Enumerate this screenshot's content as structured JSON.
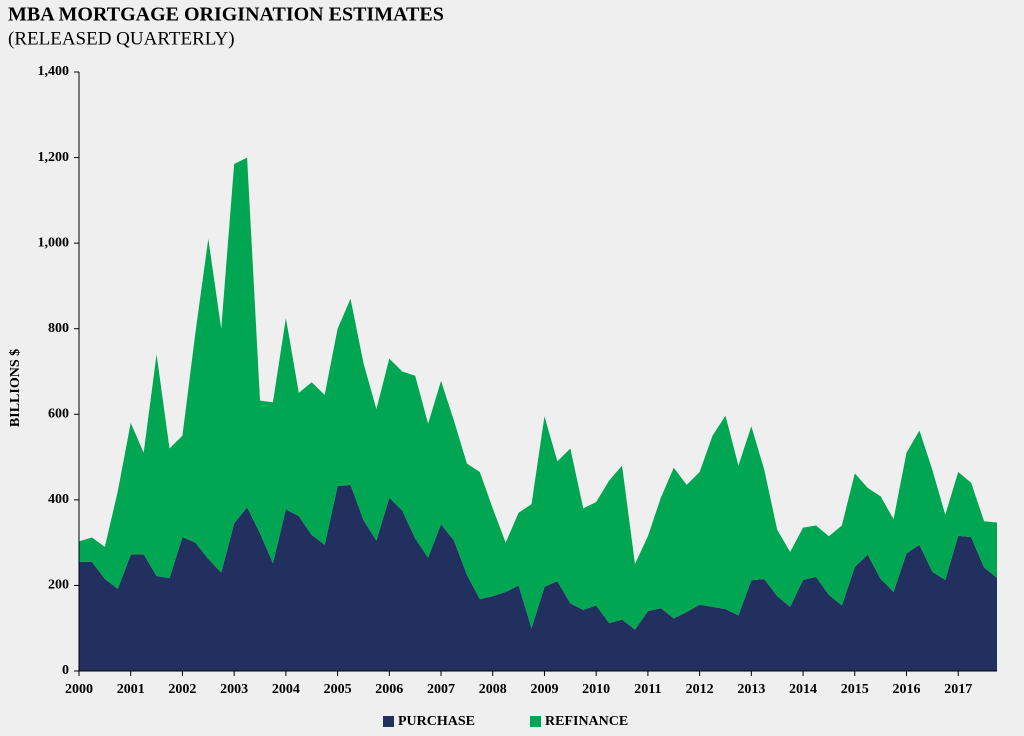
{
  "chart_data": {
    "type": "stacked-area",
    "title": "MBA MORTGAGE ORIGINATION ESTIMATES",
    "subtitle": "(RELEASED QUARTERLY)",
    "y_label": "BILLIONS $",
    "categories": [
      "2000",
      null,
      null,
      null,
      "2001",
      null,
      null,
      null,
      "2002",
      null,
      null,
      null,
      "2003",
      null,
      null,
      null,
      "2004",
      null,
      null,
      null,
      "2005",
      null,
      null,
      null,
      "2006",
      null,
      null,
      null,
      "2007",
      null,
      null,
      null,
      "2008",
      null,
      null,
      null,
      "2009",
      null,
      null,
      null,
      "2010",
      null,
      null,
      null,
      "2011",
      null,
      null,
      null,
      "2012",
      null,
      null,
      null,
      "2013",
      null,
      null,
      null,
      "2014",
      null,
      null,
      null,
      "2015",
      null,
      null,
      null,
      "2016",
      null,
      null,
      null,
      "2017",
      null,
      null,
      null
    ],
    "series": [
      {
        "name": "PURCHASE",
        "color": "#22305f",
        "values": [
          255,
          255,
          215,
          192,
          272,
          273,
          222,
          217,
          313,
          300,
          262,
          230,
          345,
          383,
          322,
          252,
          378,
          362,
          318,
          295,
          432,
          435,
          353,
          305,
          405,
          375,
          310,
          265,
          343,
          305,
          225,
          168,
          175,
          185,
          200,
          100,
          197,
          210,
          158,
          143,
          153,
          112,
          120,
          97,
          140,
          147,
          123,
          138,
          155,
          150,
          145,
          130,
          212,
          215,
          175,
          150,
          213,
          220,
          178,
          153,
          243,
          272,
          215,
          185,
          275,
          295,
          232,
          213,
          316,
          313,
          242,
          218
        ]
      },
      {
        "name": "REFINANCE",
        "color": "#00a651",
        "values": [
          48,
          57,
          75,
          228,
          308,
          237,
          518,
          303,
          237,
          490,
          748,
          570,
          840,
          817,
          310,
          376,
          447,
          288,
          357,
          350,
          368,
          435,
          367,
          307,
          325,
          325,
          380,
          313,
          335,
          280,
          260,
          297,
          205,
          115,
          170,
          290,
          398,
          280,
          362,
          237,
          242,
          333,
          360,
          153,
          175,
          258,
          352,
          297,
          310,
          400,
          452,
          350,
          360,
          255,
          155,
          128,
          122,
          120,
          137,
          187,
          219,
          156,
          193,
          170,
          235,
          267,
          238,
          152,
          149,
          127,
          108,
          129
        ]
      }
    ],
    "ylim": [
      0,
      1400
    ],
    "yticks": [
      0,
      200,
      400,
      600,
      800,
      {
        "value": 1000,
        "label": "1,000"
      },
      {
        "value": 1200,
        "label": "1,200"
      },
      {
        "value": 1400,
        "label": "1,400"
      }
    ]
  }
}
